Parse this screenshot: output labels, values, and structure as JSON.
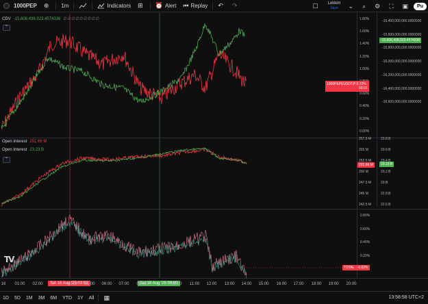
{
  "toolbar": {
    "symbol": "1000PEP",
    "interval": "1m",
    "indicators_label": "Indicators",
    "alert_label": "Alert",
    "replay_label": "Replay",
    "layout_name": "Lekkim",
    "layout_status": "Save",
    "publish_label": "Pu"
  },
  "pane1": {
    "legend_name": "CDV",
    "legend_value": "-15,606,438,923.4574336",
    "legend_extras": "∅ ∅ ∅ ∅ ∅ ∅ ∅ ∅ ∅",
    "price_axis": [
      "1.80%",
      "1.60%",
      "1.40%",
      "1.20%",
      "1.00%",
      "0.80%",
      "0.60%",
      "0.40%",
      "0.20%",
      "0.00%"
    ],
    "cdv_axis": [
      "-15,400,000,000.0000000",
      "-15,600,000,000.0000000",
      "-15,800,000,000.0000000",
      "-16,000,000,000.0000000",
      "-16,200,000,000.0000000",
      "-16,400,000,000.0000000",
      "-16,600,000,000.0000000"
    ],
    "cdv_tag": "-15,606,438,923.4574336",
    "price_tag_symbol": "1000PEPEUSDT.P",
    "price_tag_value": "0.72%",
    "price_tag_timer": "00:01"
  },
  "pane2": {
    "legend_oi1_label": "Open Interest",
    "legend_oi1_value": "251.66 M",
    "legend_oi2_label": "Open Interest",
    "legend_oi2_value": "23.23 B",
    "axis_left": [
      "257.5 M",
      "255 M",
      "252.5 M",
      "250 M",
      "247.5 M",
      "245 M",
      "242.5 M"
    ],
    "axis_right": [
      "23.8 B",
      "23.6 B",
      "23.4 B",
      "23.2 B",
      "23 B",
      "22.8 B",
      "22.6 B"
    ],
    "tag_left": "251.66 M",
    "tag_right": "23.23 B"
  },
  "pane3": {
    "axis": [
      "0.80%",
      "0.60%",
      "0.40%",
      "0.20%",
      "0.00%"
    ],
    "total_label": "TOTAL",
    "total_value": "-0.02%"
  },
  "time_axis": {
    "labels": [
      "16",
      "01:00",
      "02:00",
      "03:00",
      "04:00",
      "05:00",
      "06:00",
      "07:00",
      "08:00",
      "09:00",
      "10:00",
      "11:00",
      "12:00",
      "13:00",
      "14:00",
      "15:00",
      "16:00",
      "17:00",
      "18:00",
      "19:00",
      "20:00"
    ],
    "cross_red": "Sat 16 Aug '25   03:52",
    "cross_green": "Sat 16 Aug '25   09:00"
  },
  "bottom_bar": {
    "ranges": [
      "1D",
      "5D",
      "1M",
      "3M",
      "6M",
      "YTD",
      "1Y",
      "All"
    ],
    "clock": "13:58:58 UTC+2"
  },
  "colors": {
    "red": "#f23645",
    "green": "#4caf50",
    "pink": "#e57b8e",
    "teal": "#4db6ac",
    "background": "#0f0f0f"
  }
}
